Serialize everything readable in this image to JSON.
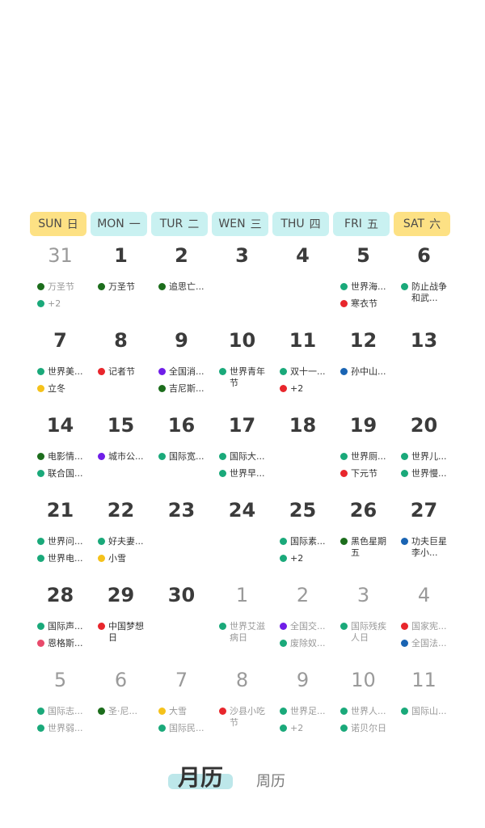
{
  "colors": {
    "green": "#1aa97a",
    "darkgreen": "#1c6d1c",
    "red": "#e8262c",
    "purple": "#6f1ee8",
    "blue": "#1a64b3",
    "yellow": "#f5c21b",
    "pink": "#e84a6b"
  },
  "weekdays": [
    {
      "en": "SUN",
      "zh": "日",
      "weekend": true
    },
    {
      "en": "MON",
      "zh": "一",
      "weekend": false
    },
    {
      "en": "TUR",
      "zh": "二",
      "weekend": false
    },
    {
      "en": "WEN",
      "zh": "三",
      "weekend": false
    },
    {
      "en": "THU",
      "zh": "四",
      "weekend": false
    },
    {
      "en": "FRI",
      "zh": "五",
      "weekend": false
    },
    {
      "en": "SAT",
      "zh": "六",
      "weekend": true
    }
  ],
  "weeks": [
    [
      {
        "day": "31",
        "other": true,
        "events": [
          {
            "text": "万圣节",
            "color": "darkgreen"
          },
          {
            "text": "+2",
            "color": "green"
          }
        ]
      },
      {
        "day": "1",
        "other": false,
        "events": [
          {
            "text": "万圣节",
            "color": "darkgreen"
          }
        ]
      },
      {
        "day": "2",
        "other": false,
        "events": [
          {
            "text": "追思亡...",
            "color": "darkgreen"
          }
        ]
      },
      {
        "day": "3",
        "other": false,
        "events": []
      },
      {
        "day": "4",
        "other": false,
        "events": []
      },
      {
        "day": "5",
        "other": false,
        "events": [
          {
            "text": "世界海...",
            "color": "green"
          },
          {
            "text": "寒衣节",
            "color": "red"
          }
        ]
      },
      {
        "day": "6",
        "other": false,
        "events": [
          {
            "text": "防止战争和武...",
            "color": "green",
            "wrap": true
          }
        ]
      }
    ],
    [
      {
        "day": "7",
        "other": false,
        "events": [
          {
            "text": "世界美...",
            "color": "green"
          },
          {
            "text": "立冬",
            "color": "yellow"
          }
        ]
      },
      {
        "day": "8",
        "other": false,
        "events": [
          {
            "text": "记者节",
            "color": "red"
          }
        ]
      },
      {
        "day": "9",
        "other": false,
        "events": [
          {
            "text": "全国消...",
            "color": "purple"
          },
          {
            "text": "吉尼斯...",
            "color": "darkgreen"
          }
        ]
      },
      {
        "day": "10",
        "other": false,
        "events": [
          {
            "text": "世界青年节",
            "color": "green",
            "wrap": true
          }
        ]
      },
      {
        "day": "11",
        "other": false,
        "events": [
          {
            "text": "双十一...",
            "color": "green"
          },
          {
            "text": "+2",
            "color": "red"
          }
        ]
      },
      {
        "day": "12",
        "other": false,
        "events": [
          {
            "text": "孙中山...",
            "color": "blue"
          }
        ]
      },
      {
        "day": "13",
        "other": false,
        "events": []
      }
    ],
    [
      {
        "day": "14",
        "other": false,
        "events": [
          {
            "text": "电影情...",
            "color": "darkgreen"
          },
          {
            "text": "联合国...",
            "color": "green"
          }
        ]
      },
      {
        "day": "15",
        "other": false,
        "events": [
          {
            "text": "城市公...",
            "color": "purple"
          }
        ]
      },
      {
        "day": "16",
        "other": false,
        "events": [
          {
            "text": "国际宽...",
            "color": "green"
          }
        ]
      },
      {
        "day": "17",
        "other": false,
        "events": [
          {
            "text": "国际大...",
            "color": "green"
          },
          {
            "text": "世界早...",
            "color": "green"
          }
        ]
      },
      {
        "day": "18",
        "other": false,
        "events": []
      },
      {
        "day": "19",
        "other": false,
        "events": [
          {
            "text": "世界厕...",
            "color": "green"
          },
          {
            "text": "下元节",
            "color": "red"
          }
        ]
      },
      {
        "day": "20",
        "other": false,
        "events": [
          {
            "text": "世界儿...",
            "color": "green"
          },
          {
            "text": "世界慢...",
            "color": "green"
          }
        ]
      }
    ],
    [
      {
        "day": "21",
        "other": false,
        "events": [
          {
            "text": "世界问...",
            "color": "green"
          },
          {
            "text": "世界电...",
            "color": "green"
          }
        ]
      },
      {
        "day": "22",
        "other": false,
        "events": [
          {
            "text": "好夫妻...",
            "color": "green"
          },
          {
            "text": "小雪",
            "color": "yellow"
          }
        ]
      },
      {
        "day": "23",
        "other": false,
        "events": []
      },
      {
        "day": "24",
        "other": false,
        "events": []
      },
      {
        "day": "25",
        "other": false,
        "events": [
          {
            "text": "国际素...",
            "color": "green"
          },
          {
            "text": "+2",
            "color": "green"
          }
        ]
      },
      {
        "day": "26",
        "other": false,
        "events": [
          {
            "text": "黑色星期五",
            "color": "darkgreen",
            "wrap": true
          }
        ]
      },
      {
        "day": "27",
        "other": false,
        "events": [
          {
            "text": "功夫巨星李小...",
            "color": "blue",
            "wrap": true
          }
        ]
      }
    ],
    [
      {
        "day": "28",
        "other": false,
        "events": [
          {
            "text": "国际声...",
            "color": "green"
          },
          {
            "text": "恩格斯...",
            "color": "pink"
          }
        ]
      },
      {
        "day": "29",
        "other": false,
        "events": [
          {
            "text": "中国梦想日",
            "color": "red",
            "wrap": true
          }
        ]
      },
      {
        "day": "30",
        "other": false,
        "events": []
      },
      {
        "day": "1",
        "other": true,
        "events": [
          {
            "text": "世界艾滋病日",
            "color": "green",
            "wrap": true
          }
        ]
      },
      {
        "day": "2",
        "other": true,
        "events": [
          {
            "text": "全国交...",
            "color": "purple"
          },
          {
            "text": "废除奴...",
            "color": "green"
          }
        ]
      },
      {
        "day": "3",
        "other": true,
        "events": [
          {
            "text": "国际残疾人日",
            "color": "green",
            "wrap": true
          }
        ]
      },
      {
        "day": "4",
        "other": true,
        "events": [
          {
            "text": "国家宪...",
            "color": "red"
          },
          {
            "text": "全国法...",
            "color": "blue"
          }
        ]
      }
    ],
    [
      {
        "day": "5",
        "other": true,
        "events": [
          {
            "text": "国际志...",
            "color": "green"
          },
          {
            "text": "世界弱...",
            "color": "green"
          }
        ]
      },
      {
        "day": "6",
        "other": true,
        "events": [
          {
            "text": "圣·尼...",
            "color": "darkgreen"
          }
        ]
      },
      {
        "day": "7",
        "other": true,
        "events": [
          {
            "text": "大雪",
            "color": "yellow"
          },
          {
            "text": "国际民...",
            "color": "green"
          }
        ]
      },
      {
        "day": "8",
        "other": true,
        "events": [
          {
            "text": "沙县小吃节",
            "color": "red",
            "wrap": true
          }
        ]
      },
      {
        "day": "9",
        "other": true,
        "events": [
          {
            "text": "世界足...",
            "color": "green"
          },
          {
            "text": "+2",
            "color": "green"
          }
        ]
      },
      {
        "day": "10",
        "other": true,
        "events": [
          {
            "text": "世界人...",
            "color": "green"
          },
          {
            "text": "诺贝尔日",
            "color": "green"
          }
        ]
      },
      {
        "day": "11",
        "other": true,
        "events": [
          {
            "text": "国际山...",
            "color": "green"
          }
        ]
      }
    ]
  ],
  "tabs": {
    "month": "月历",
    "week": "周历"
  }
}
